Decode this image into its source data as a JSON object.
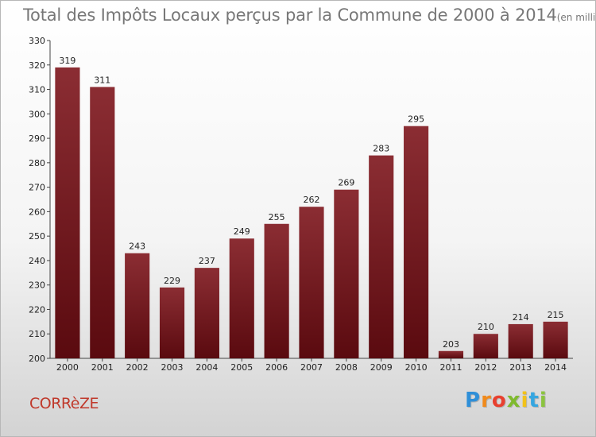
{
  "chart_data": {
    "type": "bar",
    "title": "Total des Impôts Locaux perçus par la Commune de 2000 à 2014",
    "subtitle": "(en milliers d'€)",
    "categories": [
      "2000",
      "2001",
      "2002",
      "2003",
      "2004",
      "2005",
      "2006",
      "2007",
      "2008",
      "2009",
      "2010",
      "2011",
      "2012",
      "2013",
      "2014"
    ],
    "values": [
      319,
      311,
      243,
      229,
      237,
      249,
      255,
      262,
      269,
      283,
      295,
      203,
      210,
      214,
      215
    ],
    "yticks": [
      "200",
      "210",
      "220",
      "230",
      "240",
      "250",
      "260",
      "270",
      "280",
      "290",
      "300",
      "310",
      "320",
      "330"
    ],
    "ylim": [
      200,
      330
    ],
    "xlabel": "",
    "ylabel": "",
    "grid": false,
    "legend": "none",
    "bar_color_top": "#8b2d33",
    "bar_color_bottom": "#5a0a0f"
  },
  "commune": "CORRèZE",
  "brand": {
    "letters": [
      "P",
      "r",
      "o",
      "x",
      "i",
      "t",
      "i"
    ],
    "colors": [
      "#2f8fd8",
      "#f08a1c",
      "#e8402f",
      "#7fba2e",
      "#f2c21a",
      "#35a6e0",
      "#8bc43f"
    ]
  }
}
